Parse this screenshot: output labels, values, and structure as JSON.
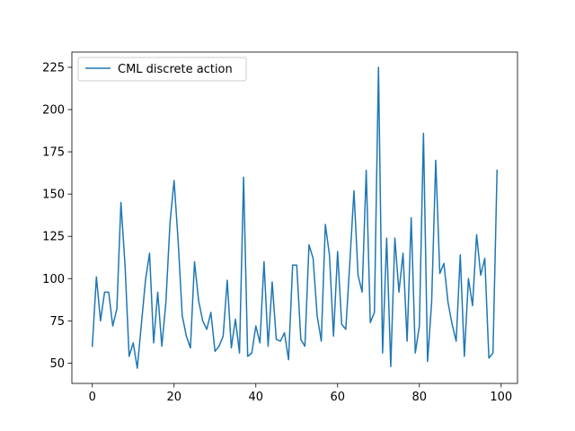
{
  "chart_data": {
    "type": "line",
    "title": "",
    "xlabel": "",
    "ylabel": "",
    "xlim": [
      -5,
      104
    ],
    "ylim": [
      38,
      234
    ],
    "x_ticks": [
      0,
      20,
      40,
      60,
      80,
      100
    ],
    "y_ticks": [
      50,
      75,
      100,
      125,
      150,
      175,
      200,
      225
    ],
    "grid": false,
    "legend_position": "upper-left",
    "series": [
      {
        "name": "CML discrete action",
        "color": "#1f77b4",
        "x": [
          0,
          1,
          2,
          3,
          4,
          5,
          6,
          7,
          8,
          9,
          10,
          11,
          12,
          13,
          14,
          15,
          16,
          17,
          18,
          19,
          20,
          21,
          22,
          23,
          24,
          25,
          26,
          27,
          28,
          29,
          30,
          31,
          32,
          33,
          34,
          35,
          36,
          37,
          38,
          39,
          40,
          41,
          42,
          43,
          44,
          45,
          46,
          47,
          48,
          49,
          50,
          51,
          52,
          53,
          54,
          55,
          56,
          57,
          58,
          59,
          60,
          61,
          62,
          63,
          64,
          65,
          66,
          67,
          68,
          69,
          70,
          71,
          72,
          73,
          74,
          75,
          76,
          77,
          78,
          79,
          80,
          81,
          82,
          83,
          84,
          85,
          86,
          87,
          88,
          89,
          90,
          91,
          92,
          93,
          94,
          95,
          96,
          97,
          98,
          99
        ],
        "values": [
          60,
          101,
          75,
          92,
          92,
          72,
          82,
          145,
          108,
          54,
          62,
          47,
          73,
          99,
          115,
          62,
          92,
          60,
          86,
          133,
          158,
          122,
          78,
          66,
          59,
          110,
          87,
          75,
          70,
          80,
          57,
          60,
          66,
          99,
          59,
          76,
          56,
          160,
          54,
          56,
          72,
          62,
          110,
          60,
          98,
          64,
          63,
          68,
          52,
          108,
          108,
          64,
          60,
          120,
          112,
          78,
          63,
          132,
          114,
          66,
          116,
          73,
          70,
          110,
          152,
          102,
          92,
          164,
          74,
          80,
          225,
          56,
          124,
          48,
          124,
          92,
          115,
          63,
          136,
          56,
          72,
          186,
          51,
          86,
          170,
          103,
          109,
          86,
          73,
          63,
          114,
          54,
          100,
          84,
          126,
          102,
          112,
          53,
          56,
          164
        ]
      }
    ]
  }
}
